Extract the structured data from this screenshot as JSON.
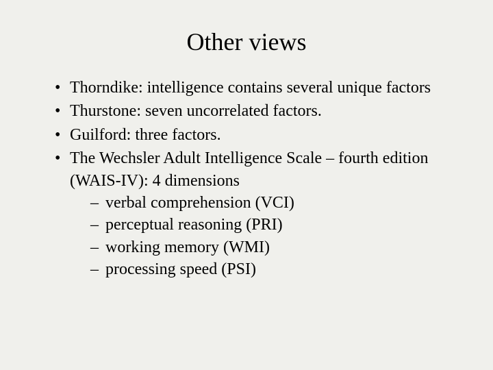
{
  "title": "Other views",
  "bullets": [
    "Thorndike: intelligence contains several unique factors",
    "Thurstone: seven uncorrelated factors.",
    "Guilford: three factors.",
    "The Wechsler Adult Intelligence Scale – fourth edition (WAIS-IV): 4 dimensions"
  ],
  "subBullets": [
    "verbal comprehension (VCI)",
    "perceptual reasoning (PRI)",
    "working memory (WMI)",
    "processing speed (PSI)"
  ],
  "styling": {
    "backgroundColor": "#f0f0ec",
    "textColor": "#000000",
    "fontFamily": "Times New Roman",
    "titleFontSize": 36,
    "bodyFontSize": 24
  }
}
